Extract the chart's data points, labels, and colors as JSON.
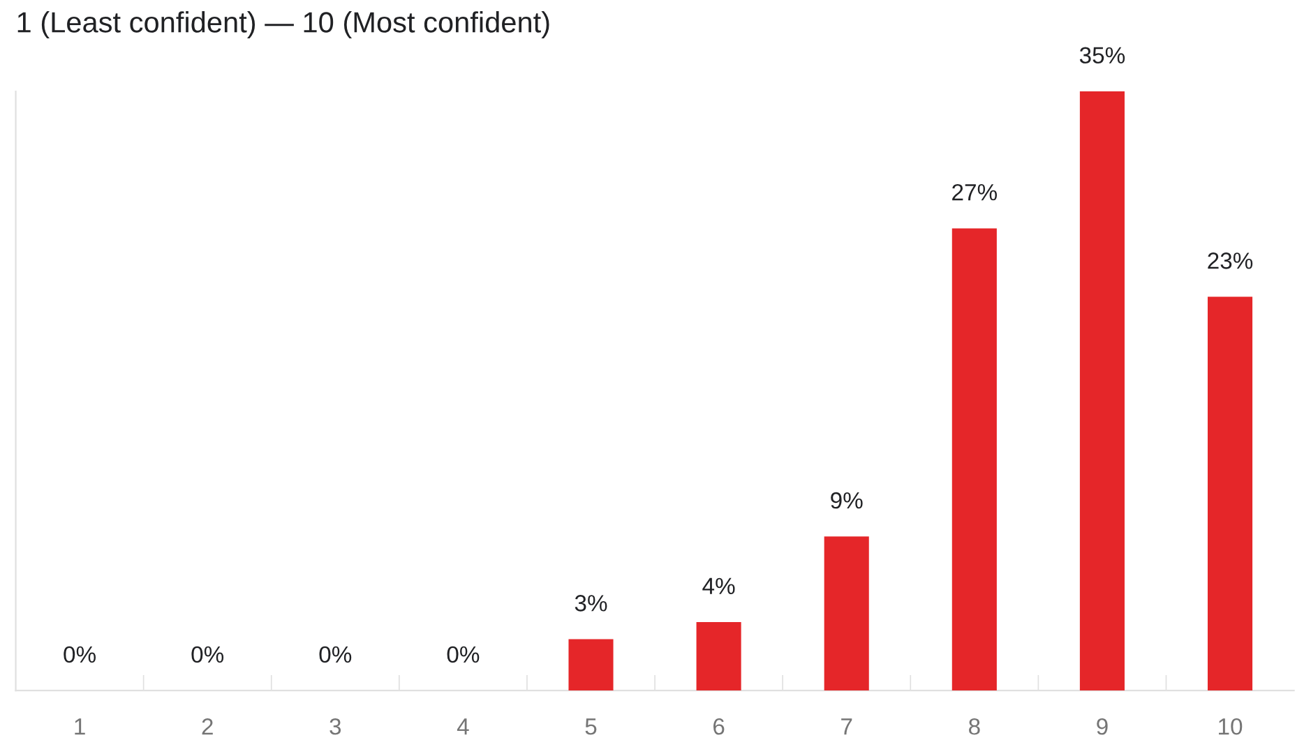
{
  "chart_data": {
    "type": "bar",
    "subtitle": "1 (Least confident) — 10 (Most confident)",
    "categories": [
      "1",
      "2",
      "3",
      "4",
      "5",
      "6",
      "7",
      "8",
      "9",
      "10"
    ],
    "values": [
      0,
      0,
      0,
      0,
      3,
      4,
      9,
      27,
      35,
      23
    ],
    "value_labels": [
      "0%",
      "0%",
      "0%",
      "0%",
      "3%",
      "4%",
      "9%",
      "27%",
      "35%",
      "23%"
    ],
    "color": "#e52629",
    "ylim": [
      0,
      35
    ],
    "tick_labels": "x",
    "grid": false
  }
}
